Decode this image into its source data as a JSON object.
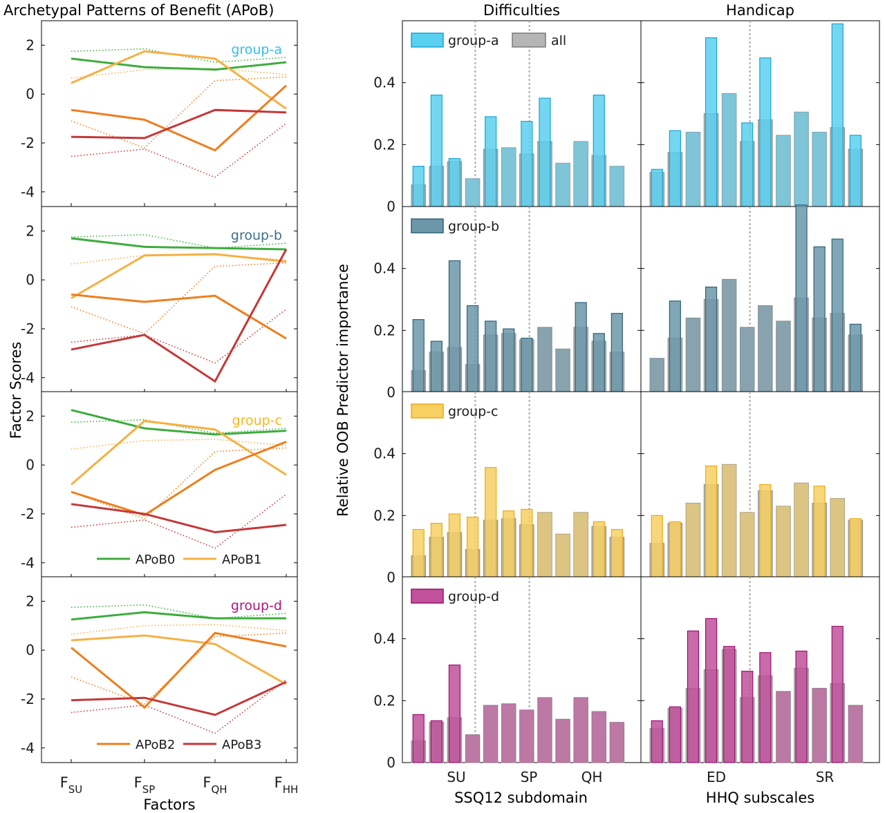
{
  "chart_data": [
    {
      "type": "line",
      "title": "Archetypal Patterns of Benefit (APoB)",
      "ylabel": "Factor Scores",
      "xlabel": "Factors",
      "x_ticks": [
        {
          "main": "F",
          "sub": "SU"
        },
        {
          "main": "F",
          "sub": "SP"
        },
        {
          "main": "F",
          "sub": "QH"
        },
        {
          "main": "F",
          "sub": "HH"
        }
      ],
      "ylim": [
        -4.6,
        3
      ],
      "y_ticks": [
        -4,
        -2,
        0,
        2
      ],
      "y_tick_labels": [
        "-4",
        "-2",
        "0",
        "2"
      ],
      "series_styles": [
        {
          "name": "APoB0",
          "color": "#3cac3c"
        },
        {
          "name": "APoB1",
          "color": "#f5b042"
        },
        {
          "name": "APoB2",
          "color": "#ee7d1c"
        },
        {
          "name": "APoB3",
          "color": "#c53737"
        }
      ],
      "reference_series": [
        [
          1.75,
          1.85,
          1.3,
          1.5
        ],
        [
          0.65,
          1.0,
          1.05,
          0.8
        ],
        [
          -1.1,
          -2.2,
          0.55,
          0.7
        ],
        [
          -2.55,
          -2.25,
          -3.4,
          -1.2
        ]
      ],
      "panels": [
        {
          "group": "group-a",
          "color": "#33bfe6",
          "series": [
            [
              1.45,
              1.1,
              1.0,
              1.3
            ],
            [
              0.45,
              1.75,
              1.45,
              -0.6
            ],
            [
              -0.65,
              -1.05,
              -2.3,
              0.35
            ],
            [
              -1.75,
              -1.8,
              -0.65,
              -0.75
            ]
          ]
        },
        {
          "group": "group-b",
          "color": "#3d7086",
          "series": [
            [
              1.7,
              1.35,
              1.3,
              1.25
            ],
            [
              -0.75,
              1.0,
              1.05,
              0.75
            ],
            [
              -0.6,
              -0.9,
              -0.65,
              -2.4
            ],
            [
              -2.85,
              -2.25,
              -4.15,
              1.25
            ]
          ]
        },
        {
          "group": "group-c",
          "color": "#f5b81c",
          "series": [
            [
              2.25,
              1.5,
              1.25,
              1.4
            ],
            [
              -0.8,
              1.8,
              1.45,
              -0.4
            ],
            [
              -1.1,
              -2.05,
              -0.2,
              0.95
            ],
            [
              -1.6,
              -2.0,
              -2.75,
              -2.45
            ]
          ],
          "legend": [
            "APoB0",
            "APoB1"
          ]
        },
        {
          "group": "group-d",
          "color": "#b0127f",
          "series": [
            [
              1.25,
              1.55,
              1.3,
              1.3
            ],
            [
              0.4,
              0.6,
              0.25,
              -1.4
            ],
            [
              0.1,
              -2.35,
              0.7,
              0.15
            ],
            [
              -2.05,
              -1.95,
              -2.65,
              -1.3
            ]
          ],
          "legend": [
            "APoB2",
            "APoB3"
          ]
        }
      ]
    },
    {
      "type": "bar",
      "ylabel": "Relative OOB Predictor importance",
      "ylim": [
        0,
        0.6
      ],
      "y_ticks": [
        0,
        0.2,
        0.4
      ],
      "y_tick_labels": [
        "0",
        "0.2",
        "0.4"
      ],
      "reference_name": "all",
      "reference_color": "#b5b5b5",
      "columns": [
        {
          "title": "Difficulties",
          "xlabel": "SSQ12 subdomain",
          "group_labels": [
            "SU",
            "SP",
            "QH"
          ],
          "all": [
            0.07,
            0.13,
            0.145,
            0.09,
            0.185,
            0.19,
            0.17,
            0.21,
            0.14,
            0.21,
            0.165,
            0.13
          ]
        },
        {
          "title": "Handicap",
          "xlabel": "HHQ subscales",
          "group_labels": [
            "ED",
            "SR"
          ],
          "all": [
            0.11,
            0.175,
            0.24,
            0.3,
            0.365,
            0.21,
            0.28,
            0.23,
            0.305,
            0.24,
            0.255,
            0.185
          ]
        }
      ],
      "rows": [
        {
          "group": "group-a",
          "fill": "#5ad0f0",
          "stroke": "#1aa3d1",
          "show_all_legend": true,
          "difficulties": [
            0.13,
            0.36,
            0.155,
            0.06,
            0.29,
            0.095,
            0.275,
            0.35,
            0.035,
            0.11,
            0.36,
            0.07
          ],
          "handicap": [
            0.12,
            0.245,
            0.2,
            0.545,
            0.235,
            0.27,
            0.48,
            0.12,
            0.05,
            0.14,
            0.59,
            0.23
          ]
        },
        {
          "group": "group-b",
          "fill": "#6b97a8",
          "stroke": "#2f6278",
          "show_all_legend": false,
          "difficulties": [
            0.235,
            0.165,
            0.425,
            0.28,
            0.23,
            0.205,
            0.175,
            0.145,
            0.065,
            0.29,
            0.19,
            0.255
          ],
          "handicap": [
            0.05,
            0.295,
            0.2,
            0.34,
            0.33,
            0.05,
            0.25,
            0.185,
            0.605,
            0.47,
            0.495,
            0.22
          ]
        },
        {
          "group": "group-c",
          "fill": "#f7cf63",
          "stroke": "#e9ab1a",
          "show_all_legend": false,
          "difficulties": [
            0.155,
            0.175,
            0.205,
            0.195,
            0.355,
            0.215,
            0.22,
            0.2,
            0.085,
            0.115,
            0.18,
            0.155
          ],
          "handicap": [
            0.2,
            0.18,
            0.17,
            0.36,
            0.195,
            0.155,
            0.3,
            0.22,
            0.2,
            0.295,
            0.2,
            0.19
          ]
        },
        {
          "group": "group-d",
          "fill": "#c0519a",
          "stroke": "#9b0f6d",
          "show_all_legend": false,
          "difficulties": [
            0.155,
            0.135,
            0.315,
            0.0,
            0.07,
            0.105,
            0.16,
            0.195,
            0.11,
            0.17,
            0.055,
            0.075
          ],
          "handicap": [
            0.135,
            0.18,
            0.425,
            0.465,
            0.375,
            0.295,
            0.355,
            0.19,
            0.36,
            0.225,
            0.44,
            0.15
          ]
        }
      ]
    }
  ]
}
